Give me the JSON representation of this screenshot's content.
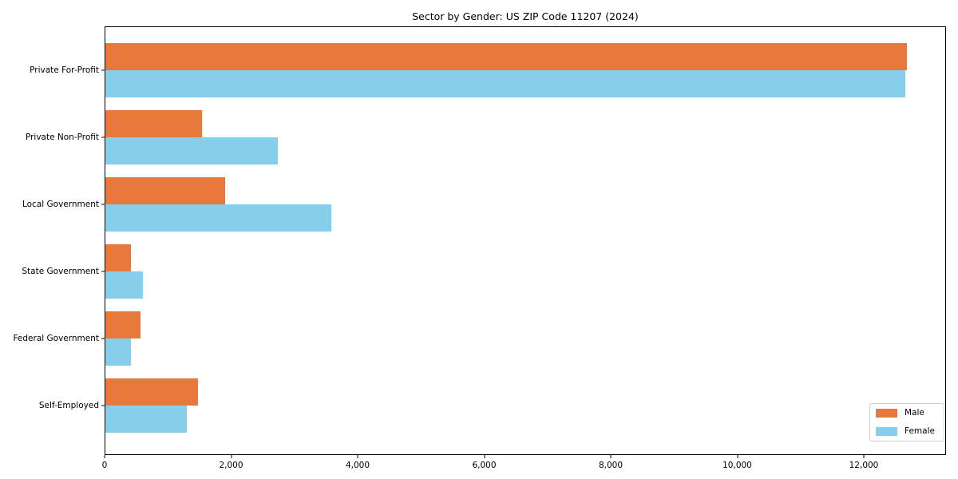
{
  "title": "Sector by Gender: US ZIP Code 11207 (2024)",
  "colors": {
    "male": "#E8793D",
    "female": "#87CEEB",
    "axis": "#000000",
    "legend_border": "#cccccc",
    "background": "#ffffff"
  },
  "legend": {
    "position": "lower right",
    "items": [
      {
        "label": "Male"
      },
      {
        "label": "Female"
      }
    ]
  },
  "chart_data": {
    "type": "bar",
    "orientation": "horizontal",
    "title": "Sector by Gender: US ZIP Code 11207 (2024)",
    "categories": [
      "Private For-Profit",
      "Private Non-Profit",
      "Local Government",
      "State Government",
      "Federal Government",
      "Self-Employed"
    ],
    "series": [
      {
        "name": "Male",
        "color": "#E8793D",
        "values": [
          12680,
          1540,
          1900,
          420,
          570,
          1470
        ]
      },
      {
        "name": "Female",
        "color": "#87CEEB",
        "values": [
          12650,
          2740,
          3580,
          610,
          420,
          1300
        ]
      }
    ],
    "xlabel": "",
    "ylabel": "",
    "xlim": [
      0,
      13300
    ],
    "xticks": [
      0,
      2000,
      4000,
      6000,
      8000,
      10000,
      12000
    ],
    "xtick_labels": [
      "0",
      "2,000",
      "4,000",
      "6,000",
      "8,000",
      "10,000",
      "12,000"
    ],
    "legend_position": "lower right",
    "grid": false
  }
}
